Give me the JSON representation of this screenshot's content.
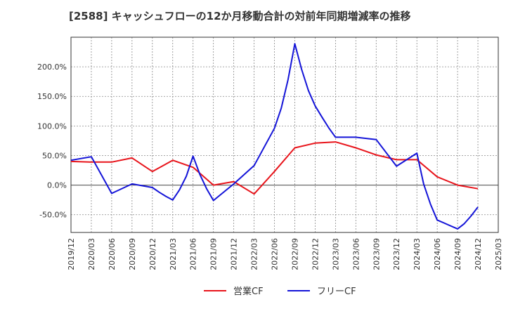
{
  "chart_data": {
    "type": "line",
    "title": "[2588]  キャッシュフローの12か月移動合計の対前年同期増減率の推移",
    "y_ticks": [
      "-50.0%",
      "0.0%",
      "50.0%",
      "100.0%",
      "150.0%",
      "200.0%"
    ],
    "y_tick_values": [
      -50,
      0,
      50,
      100,
      150,
      200
    ],
    "ylim": [
      -80,
      250
    ],
    "x_ticks": [
      "2019/12",
      "2020/03",
      "2020/06",
      "2020/09",
      "2020/12",
      "2021/03",
      "2021/06",
      "2021/09",
      "2021/12",
      "2022/03",
      "2022/06",
      "2022/09",
      "2022/12",
      "2023/03",
      "2023/06",
      "2023/09",
      "2023/12",
      "2024/03",
      "2024/06",
      "2024/09",
      "2024/12",
      "2025/03"
    ],
    "grid": true,
    "legend_position": "bottom",
    "series": [
      {
        "name": "営業CF",
        "color": "#e8141b",
        "x": [
          "2019/12",
          "2020/03",
          "2020/06",
          "2020/09",
          "2020/12",
          "2021/03",
          "2021/06",
          "2021/09",
          "2021/12",
          "2022/03",
          "2022/06",
          "2022/09",
          "2022/12",
          "2023/03",
          "2023/06",
          "2023/09",
          "2023/12",
          "2024/03",
          "2024/06",
          "2024/09",
          "2024/12"
        ],
        "values": [
          40,
          39,
          39,
          46,
          23,
          42,
          30,
          0,
          6,
          -15,
          23,
          63,
          71,
          73,
          63,
          51,
          43,
          43,
          14,
          0,
          -6
        ]
      },
      {
        "name": "フリーCF",
        "color": "#1414d8",
        "x": [
          "2019/12",
          "2020/03",
          "2020/06",
          "2020/09",
          "2020/12",
          "2021/01",
          "2021/02",
          "2021/03",
          "2021/04",
          "2021/05",
          "2021/06",
          "2021/07",
          "2021/08",
          "2021/09",
          "2021/12",
          "2022/03",
          "2022/06",
          "2022/07",
          "2022/08",
          "2022/09",
          "2022/10",
          "2022/11",
          "2022/12",
          "2023/01",
          "2023/02",
          "2023/03",
          "2023/06",
          "2023/09",
          "2023/12",
          "2024/03",
          "2024/04",
          "2024/05",
          "2024/06",
          "2024/09",
          "2024/10",
          "2024/11",
          "2024/12"
        ],
        "values": [
          42,
          48,
          -14,
          2,
          -4,
          -12,
          -19,
          -25,
          -8,
          15,
          49,
          18,
          -6,
          -26,
          2,
          33,
          96,
          130,
          178,
          239,
          196,
          160,
          134,
          115,
          97,
          81,
          81,
          77,
          32,
          54,
          2,
          -32,
          -59,
          -74,
          -65,
          -52,
          -37
        ]
      }
    ]
  }
}
